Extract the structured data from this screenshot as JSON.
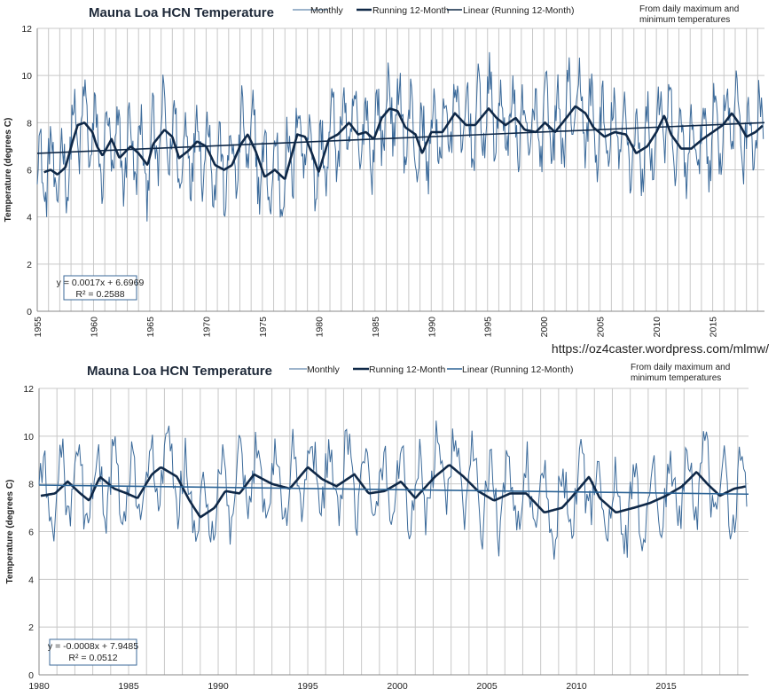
{
  "url": "https://oz4caster.wordpress.com/mlmw/",
  "colors": {
    "monthly": "#3b6a9a",
    "running": "#0f2847",
    "trend_top": "#0f2847",
    "trend_bottom": "#2d6496",
    "grid": "#c8c8c8",
    "eq_border": "#3b6a9a"
  },
  "chart_data": [
    {
      "type": "line",
      "title": "Mauna Loa HCN Temperature",
      "xlabel": "",
      "ylabel": "Temperature (degrees C)",
      "note_lines": [
        "From daily maximum and",
        "minimum temperatures"
      ],
      "legend": [
        "Monthly",
        "Running 12-Month",
        "Linear (Running 12-Month)"
      ],
      "xlim": [
        1955,
        2019.6
      ],
      "ylim": [
        0,
        12
      ],
      "yticks": [
        0,
        2,
        4,
        6,
        8,
        10,
        12
      ],
      "xticks": [
        1955,
        1960,
        1965,
        1970,
        1975,
        1980,
        1985,
        1990,
        1995,
        2000,
        2005,
        2010,
        2015
      ],
      "equation": "y = 0.0017x + 6.6969",
      "r2": "R² = 0.2588",
      "trend": {
        "start_year": 1955,
        "start_value": 6.7,
        "end_year": 2019.6,
        "end_value": 8.0
      },
      "running_keypoints": [
        [
          1955.6,
          5.9
        ],
        [
          1956.2,
          6.0
        ],
        [
          1956.8,
          5.8
        ],
        [
          1957.5,
          6.1
        ],
        [
          1958.2,
          7.3
        ],
        [
          1958.6,
          7.9
        ],
        [
          1959.2,
          8.0
        ],
        [
          1959.9,
          7.6
        ],
        [
          1960.3,
          7.0
        ],
        [
          1960.8,
          6.6
        ],
        [
          1961.6,
          7.3
        ],
        [
          1962.3,
          6.5
        ],
        [
          1963.3,
          7.0
        ],
        [
          1964.0,
          6.7
        ],
        [
          1964.8,
          6.2
        ],
        [
          1965.3,
          7.1
        ],
        [
          1966.3,
          7.7
        ],
        [
          1967.0,
          7.4
        ],
        [
          1967.6,
          6.5
        ],
        [
          1968.4,
          6.8
        ],
        [
          1969.2,
          7.2
        ],
        [
          1970.0,
          7.0
        ],
        [
          1970.8,
          6.2
        ],
        [
          1971.6,
          6.0
        ],
        [
          1972.3,
          6.2
        ],
        [
          1973.1,
          7.1
        ],
        [
          1973.7,
          7.5
        ],
        [
          1974.4,
          6.8
        ],
        [
          1975.2,
          5.7
        ],
        [
          1976.1,
          6.0
        ],
        [
          1977.0,
          5.6
        ],
        [
          1978.1,
          7.5
        ],
        [
          1978.8,
          7.4
        ],
        [
          1979.4,
          6.7
        ],
        [
          1980.0,
          5.9
        ],
        [
          1980.9,
          7.3
        ],
        [
          1981.7,
          7.5
        ],
        [
          1982.7,
          8.0
        ],
        [
          1983.5,
          7.5
        ],
        [
          1984.2,
          7.6
        ],
        [
          1984.9,
          7.3
        ],
        [
          1985.6,
          8.2
        ],
        [
          1986.3,
          8.6
        ],
        [
          1987.0,
          8.5
        ],
        [
          1987.7,
          7.8
        ],
        [
          1988.6,
          7.5
        ],
        [
          1989.2,
          6.7
        ],
        [
          1990.0,
          7.6
        ],
        [
          1991.0,
          7.6
        ],
        [
          1992.1,
          8.4
        ],
        [
          1993.1,
          7.9
        ],
        [
          1993.9,
          7.9
        ],
        [
          1995.1,
          8.6
        ],
        [
          1995.8,
          8.2
        ],
        [
          1996.6,
          7.9
        ],
        [
          1997.5,
          8.2
        ],
        [
          1998.3,
          7.7
        ],
        [
          1999.3,
          7.6
        ],
        [
          2000.1,
          8.0
        ],
        [
          2001.0,
          7.6
        ],
        [
          2002.0,
          8.2
        ],
        [
          2002.8,
          8.7
        ],
        [
          2003.7,
          8.4
        ],
        [
          2004.4,
          7.8
        ],
        [
          2005.4,
          7.4
        ],
        [
          2006.3,
          7.6
        ],
        [
          2007.3,
          7.5
        ],
        [
          2008.2,
          6.7
        ],
        [
          2009.2,
          7.0
        ],
        [
          2010.0,
          7.6
        ],
        [
          2010.7,
          8.3
        ],
        [
          2011.3,
          7.5
        ],
        [
          2012.2,
          6.9
        ],
        [
          2013.1,
          6.9
        ],
        [
          2014.1,
          7.3
        ],
        [
          2015.0,
          7.6
        ],
        [
          2015.9,
          7.9
        ],
        [
          2016.7,
          8.4
        ],
        [
          2017.3,
          8.0
        ],
        [
          2018.0,
          7.4
        ],
        [
          2018.8,
          7.6
        ],
        [
          2019.5,
          7.9
        ]
      ]
    },
    {
      "type": "line",
      "title": "Mauna Loa HCN Temperature",
      "xlabel": "",
      "ylabel": "Temperature (degrees C)",
      "note_lines": [
        "From daily maximum and",
        "minimum temperatures"
      ],
      "legend": [
        "Monthly",
        "Running 12-Month",
        "Linear (Running 12-Month)"
      ],
      "xlim": [
        1980,
        2019.6
      ],
      "ylim": [
        0,
        12
      ],
      "yticks": [
        0,
        2,
        4,
        6,
        8,
        10,
        12
      ],
      "xticks": [
        1980,
        1985,
        1990,
        1995,
        2000,
        2005,
        2010,
        2015
      ],
      "equation": "y = -0.0008x + 7.9485",
      "r2": "R² = 0.0512",
      "trend": {
        "start_year": 1980,
        "start_value": 7.95,
        "end_year": 2019.6,
        "end_value": 7.57
      },
      "running_keypoints": [
        [
          1980.1,
          7.5
        ],
        [
          1980.9,
          7.6
        ],
        [
          1981.6,
          8.1
        ],
        [
          1982.3,
          7.6
        ],
        [
          1982.8,
          7.3
        ],
        [
          1983.4,
          8.3
        ],
        [
          1984.2,
          7.8
        ],
        [
          1984.9,
          7.6
        ],
        [
          1985.5,
          7.4
        ],
        [
          1986.3,
          8.4
        ],
        [
          1986.8,
          8.7
        ],
        [
          1987.7,
          8.3
        ],
        [
          1988.4,
          7.3
        ],
        [
          1989.0,
          6.6
        ],
        [
          1989.8,
          7.0
        ],
        [
          1990.4,
          7.7
        ],
        [
          1991.2,
          7.6
        ],
        [
          1992.0,
          8.4
        ],
        [
          1993.0,
          8.0
        ],
        [
          1994.0,
          7.8
        ],
        [
          1995.0,
          8.7
        ],
        [
          1995.8,
          8.2
        ],
        [
          1996.6,
          7.9
        ],
        [
          1997.6,
          8.4
        ],
        [
          1998.4,
          7.6
        ],
        [
          1999.3,
          7.7
        ],
        [
          2000.2,
          8.1
        ],
        [
          2001.0,
          7.4
        ],
        [
          2002.1,
          8.3
        ],
        [
          2002.9,
          8.8
        ],
        [
          2003.7,
          8.3
        ],
        [
          2004.5,
          7.7
        ],
        [
          2005.4,
          7.3
        ],
        [
          2006.3,
          7.6
        ],
        [
          2007.2,
          7.6
        ],
        [
          2008.2,
          6.8
        ],
        [
          2009.2,
          7.0
        ],
        [
          2009.8,
          7.5
        ],
        [
          2010.7,
          8.3
        ],
        [
          2011.3,
          7.4
        ],
        [
          2012.2,
          6.8
        ],
        [
          2013.2,
          7.0
        ],
        [
          2014.1,
          7.2
        ],
        [
          2015.0,
          7.5
        ],
        [
          2015.9,
          7.9
        ],
        [
          2016.7,
          8.5
        ],
        [
          2017.3,
          8.0
        ],
        [
          2018.0,
          7.5
        ],
        [
          2018.8,
          7.8
        ],
        [
          2019.5,
          7.9
        ]
      ]
    }
  ]
}
